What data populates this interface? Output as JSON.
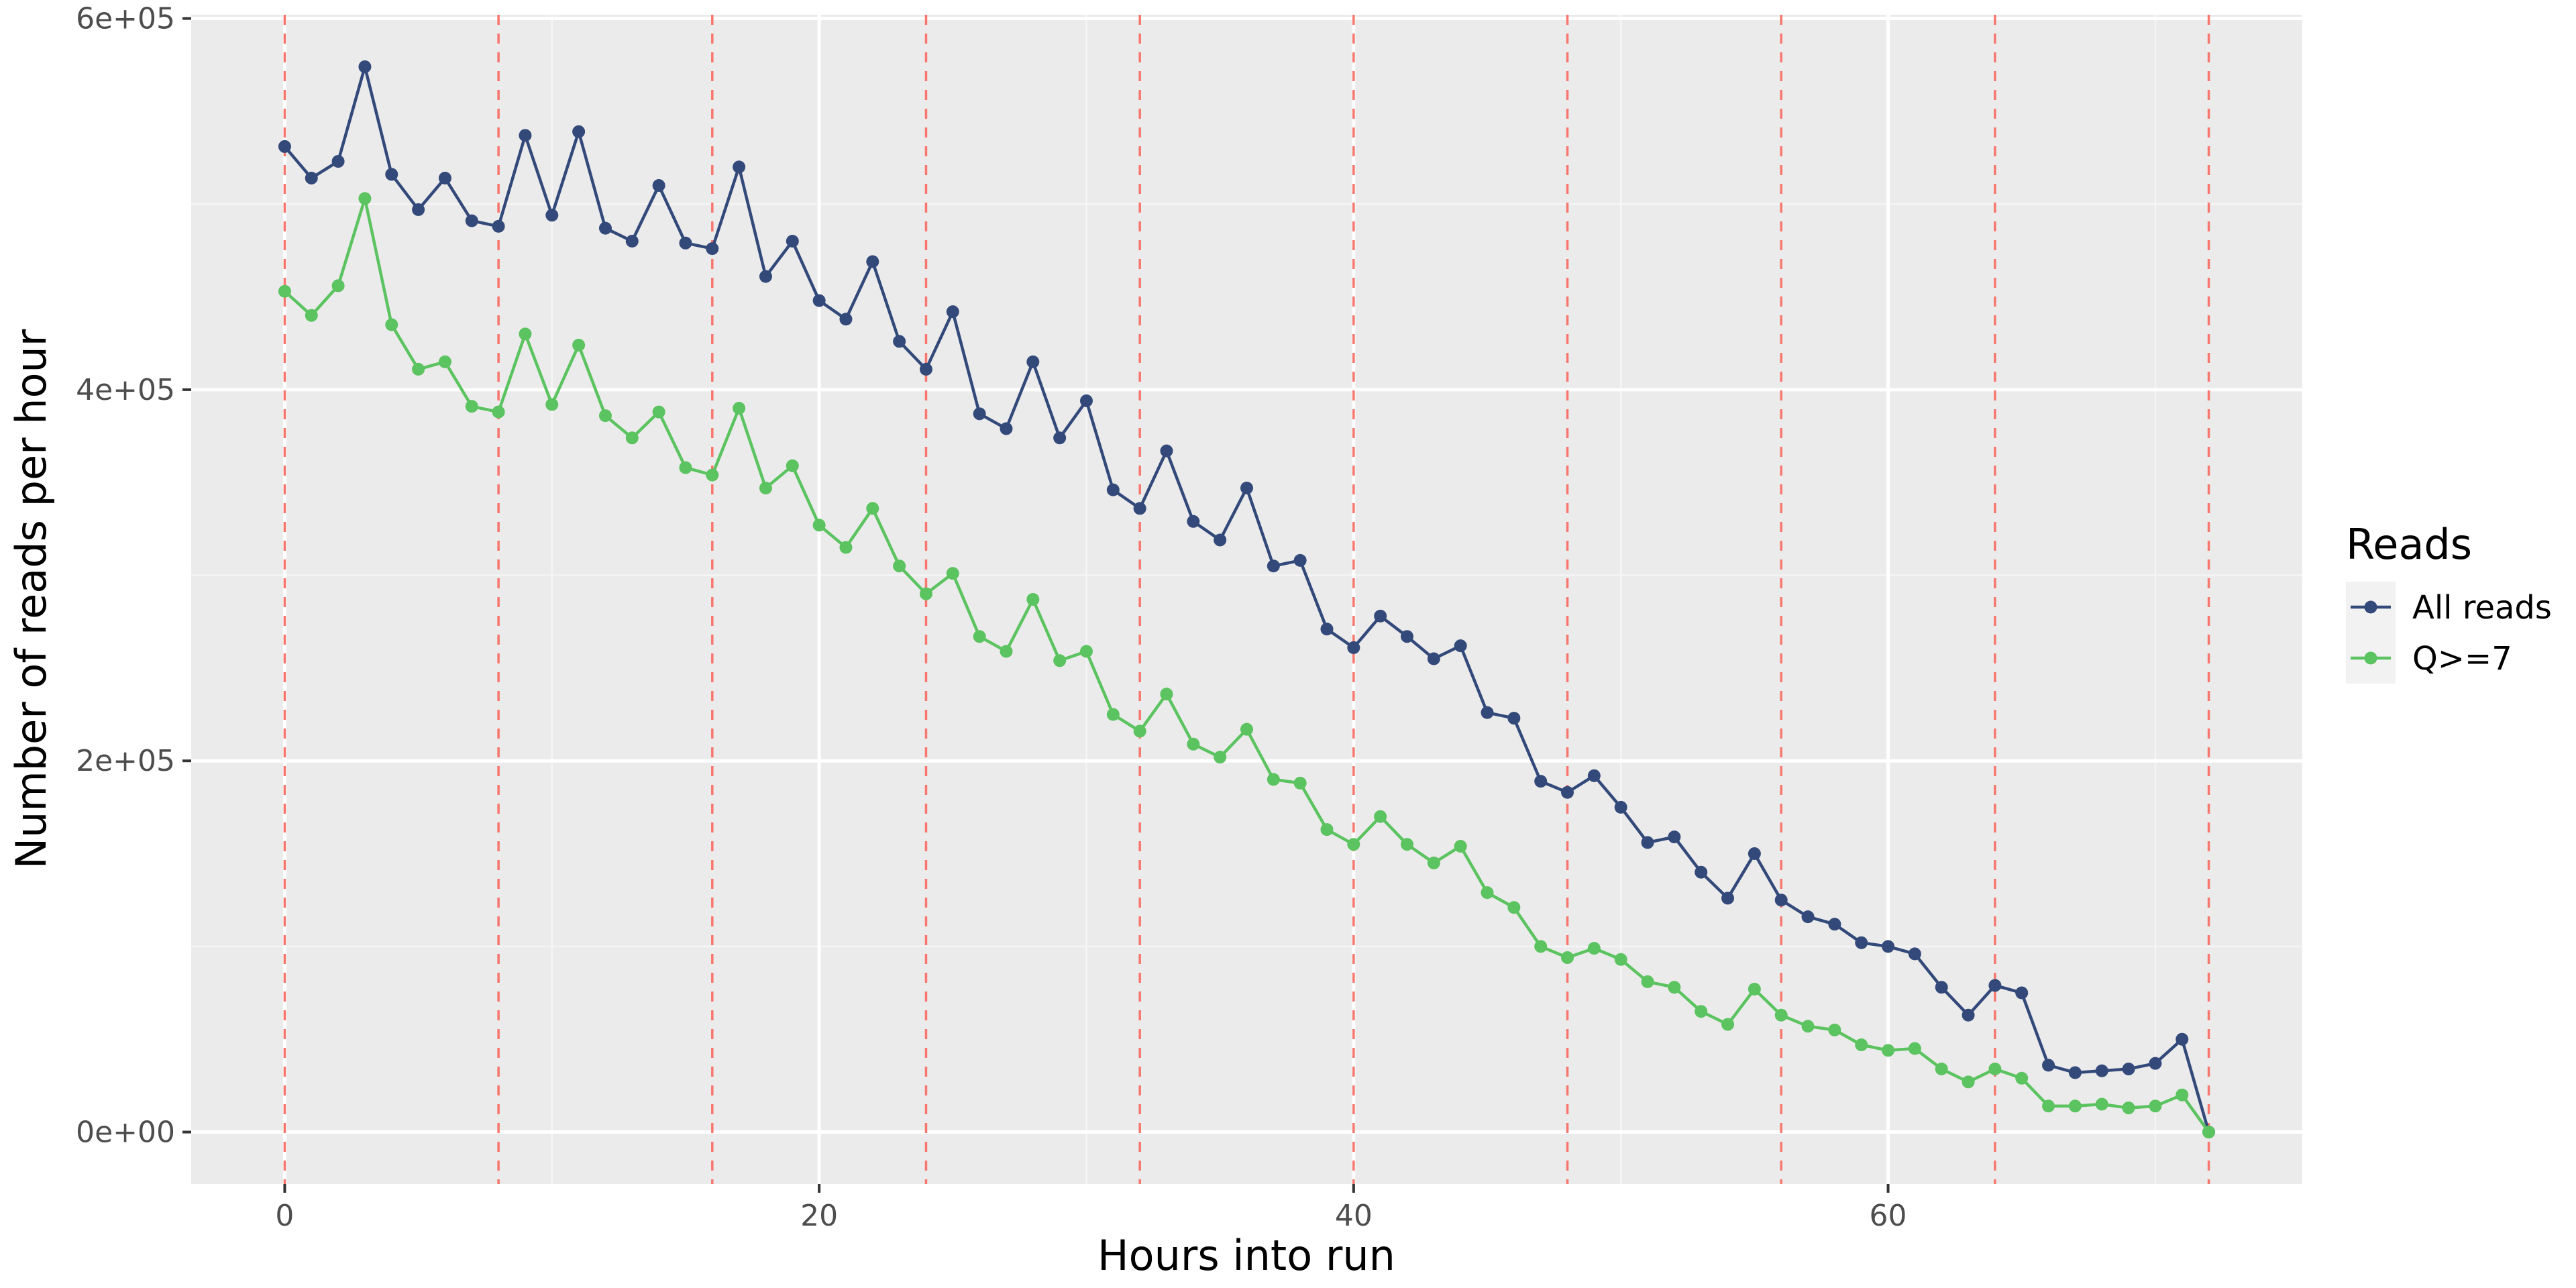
{
  "chart_data": {
    "type": "line",
    "xlabel": "Hours into run",
    "ylabel": "Number of reads per hour",
    "xlim": [
      -3.5,
      75.5
    ],
    "ylim": [
      -28000,
      602000
    ],
    "x_ticks": [
      0,
      20,
      40,
      60
    ],
    "x_tick_labels": [
      "0",
      "20",
      "40",
      "60"
    ],
    "x_minor_ticks": [
      10,
      30,
      50,
      70
    ],
    "y_ticks": [
      0,
      200000,
      400000,
      600000
    ],
    "y_tick_labels": [
      "0e+00",
      "2e+05",
      "4e+05",
      "6e+05"
    ],
    "y_minor_ticks": [
      100000,
      300000,
      500000
    ],
    "grid": true,
    "vlines": [
      0,
      8,
      16,
      24,
      32,
      40,
      48,
      56,
      64,
      72
    ],
    "vline_color": "#f8766d",
    "legend": {
      "title": "Reads",
      "position": "right"
    },
    "x": [
      0,
      1,
      2,
      3,
      4,
      5,
      6,
      7,
      8,
      9,
      10,
      11,
      12,
      13,
      14,
      15,
      16,
      17,
      18,
      19,
      20,
      21,
      22,
      23,
      24,
      25,
      26,
      27,
      28,
      29,
      30,
      31,
      32,
      33,
      34,
      35,
      36,
      37,
      38,
      39,
      40,
      41,
      42,
      43,
      44,
      45,
      46,
      47,
      48,
      49,
      50,
      51,
      52,
      53,
      54,
      55,
      56,
      57,
      58,
      59,
      60,
      61,
      62,
      63,
      64,
      65,
      66,
      67,
      68,
      69,
      70,
      71,
      72
    ],
    "series": [
      {
        "name": "All reads",
        "color": "#33497a",
        "values": [
          531000,
          514000,
          523000,
          574000,
          516000,
          497000,
          514000,
          491000,
          488000,
          537000,
          494000,
          539000,
          487000,
          480000,
          510000,
          479000,
          476000,
          520000,
          461000,
          480000,
          448000,
          438000,
          469000,
          426000,
          411000,
          442000,
          387000,
          379000,
          415000,
          374000,
          394000,
          346000,
          336000,
          367000,
          329000,
          319000,
          347000,
          305000,
          308000,
          271000,
          261000,
          278000,
          267000,
          255000,
          262000,
          226000,
          223000,
          189000,
          183000,
          192000,
          175000,
          156000,
          159000,
          140000,
          126000,
          150000,
          125000,
          116000,
          112000,
          102000,
          100000,
          96000,
          78000,
          63000,
          79000,
          75000,
          36000,
          32000,
          33000,
          34000,
          37000,
          50000,
          0
        ]
      },
      {
        "name": "Q>=7",
        "color": "#5bc35f",
        "values": [
          453000,
          440000,
          456000,
          503000,
          435000,
          411000,
          415000,
          391000,
          388000,
          430000,
          392000,
          424000,
          386000,
          374000,
          388000,
          358000,
          354000,
          390000,
          347000,
          359000,
          327000,
          315000,
          336000,
          305000,
          290000,
          301000,
          267000,
          259000,
          287000,
          254000,
          259000,
          225000,
          216000,
          236000,
          209000,
          202000,
          217000,
          190000,
          188000,
          163000,
          155000,
          170000,
          155000,
          145000,
          154000,
          129000,
          121000,
          100000,
          94000,
          99000,
          93000,
          81000,
          78000,
          65000,
          58000,
          77000,
          63000,
          57000,
          55000,
          47000,
          44000,
          45000,
          34000,
          27000,
          34000,
          29000,
          14000,
          14000,
          15000,
          13000,
          14000,
          20000,
          0
        ]
      }
    ]
  }
}
